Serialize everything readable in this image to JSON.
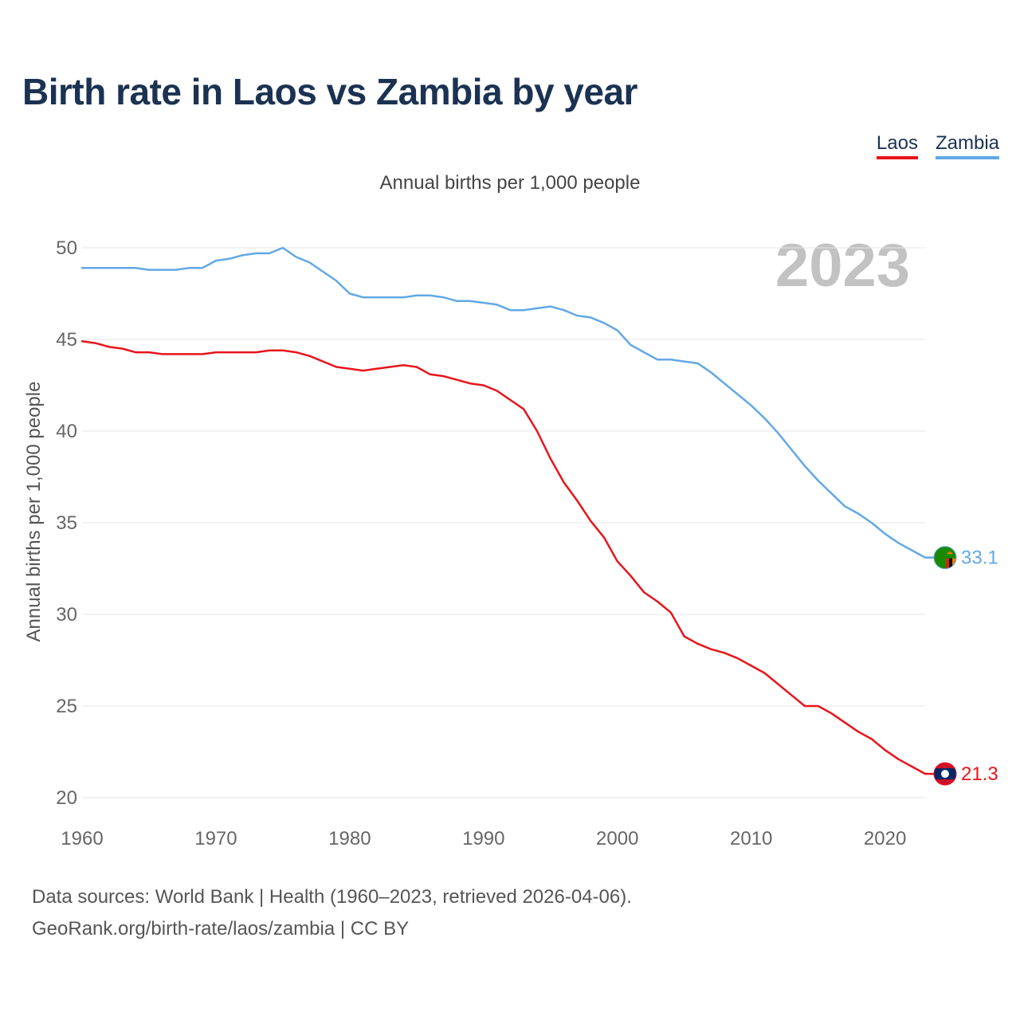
{
  "header": {
    "title": "Birth rate in Laos vs Zambia by year",
    "subtitle": "Annual births per 1,000 people",
    "year_label": "2023"
  },
  "legend": {
    "laos": "Laos",
    "zambia": "Zambia"
  },
  "footer": {
    "source_line1": "Data sources: World Bank | Health (1960–2023, retrieved 2026-04-06).",
    "source_line2": "GeoRank.org/birth-rate/laos/zambia | CC BY"
  },
  "colors": {
    "laos": "#e8141b",
    "zambia": "#62a8e5",
    "grid": "#e6e6e6",
    "axis_text": "#666666"
  },
  "chart_data": {
    "type": "line",
    "title": "Birth rate in Laos vs Zambia by year",
    "subtitle": "Annual births per 1,000 people",
    "xlabel": "",
    "ylabel": "Annual births per 1,000 people",
    "xlim": [
      1960,
      2023
    ],
    "ylim": [
      20,
      50
    ],
    "yticks": [
      20,
      25,
      30,
      35,
      40,
      45,
      50
    ],
    "xticks": [
      1960,
      1970,
      1980,
      1990,
      2000,
      2010,
      2020
    ],
    "grid": true,
    "legend_position": "top-right",
    "x": [
      1960,
      1961,
      1962,
      1963,
      1964,
      1965,
      1966,
      1967,
      1968,
      1969,
      1970,
      1971,
      1972,
      1973,
      1974,
      1975,
      1976,
      1977,
      1978,
      1979,
      1980,
      1981,
      1982,
      1983,
      1984,
      1985,
      1986,
      1987,
      1988,
      1989,
      1990,
      1991,
      1992,
      1993,
      1994,
      1995,
      1996,
      1997,
      1998,
      1999,
      2000,
      2001,
      2002,
      2003,
      2004,
      2005,
      2006,
      2007,
      2008,
      2009,
      2010,
      2011,
      2012,
      2013,
      2014,
      2015,
      2016,
      2017,
      2018,
      2019,
      2020,
      2021,
      2022,
      2023
    ],
    "series": [
      {
        "name": "Laos",
        "end_label": "21.3",
        "values": [
          44.9,
          44.8,
          44.6,
          44.5,
          44.3,
          44.3,
          44.2,
          44.2,
          44.2,
          44.2,
          44.3,
          44.3,
          44.3,
          44.3,
          44.4,
          44.4,
          44.3,
          44.1,
          43.8,
          43.5,
          43.4,
          43.3,
          43.4,
          43.5,
          43.6,
          43.5,
          43.1,
          43.0,
          42.8,
          42.6,
          42.5,
          42.2,
          41.7,
          41.2,
          40.0,
          38.5,
          37.2,
          36.2,
          35.1,
          34.2,
          32.9,
          32.1,
          31.2,
          30.7,
          30.1,
          28.8,
          28.4,
          28.1,
          27.9,
          27.6,
          27.2,
          26.8,
          26.2,
          25.6,
          25.0,
          25.0,
          24.6,
          24.1,
          23.6,
          23.2,
          22.6,
          22.1,
          21.7,
          21.3
        ]
      },
      {
        "name": "Zambia",
        "end_label": "33.1",
        "values": [
          48.9,
          48.9,
          48.9,
          48.9,
          48.9,
          48.8,
          48.8,
          48.8,
          48.9,
          48.9,
          49.3,
          49.4,
          49.6,
          49.7,
          49.7,
          50.0,
          49.5,
          49.2,
          48.7,
          48.2,
          47.5,
          47.3,
          47.3,
          47.3,
          47.3,
          47.4,
          47.4,
          47.3,
          47.1,
          47.1,
          47.0,
          46.9,
          46.6,
          46.6,
          46.7,
          46.8,
          46.6,
          46.3,
          46.2,
          45.9,
          45.5,
          44.7,
          44.3,
          43.9,
          43.9,
          43.8,
          43.7,
          43.2,
          42.6,
          42.0,
          41.4,
          40.7,
          39.9,
          39.0,
          38.1,
          37.3,
          36.6,
          35.9,
          35.5,
          35.0,
          34.4,
          33.9,
          33.5,
          33.1
        ]
      }
    ]
  }
}
